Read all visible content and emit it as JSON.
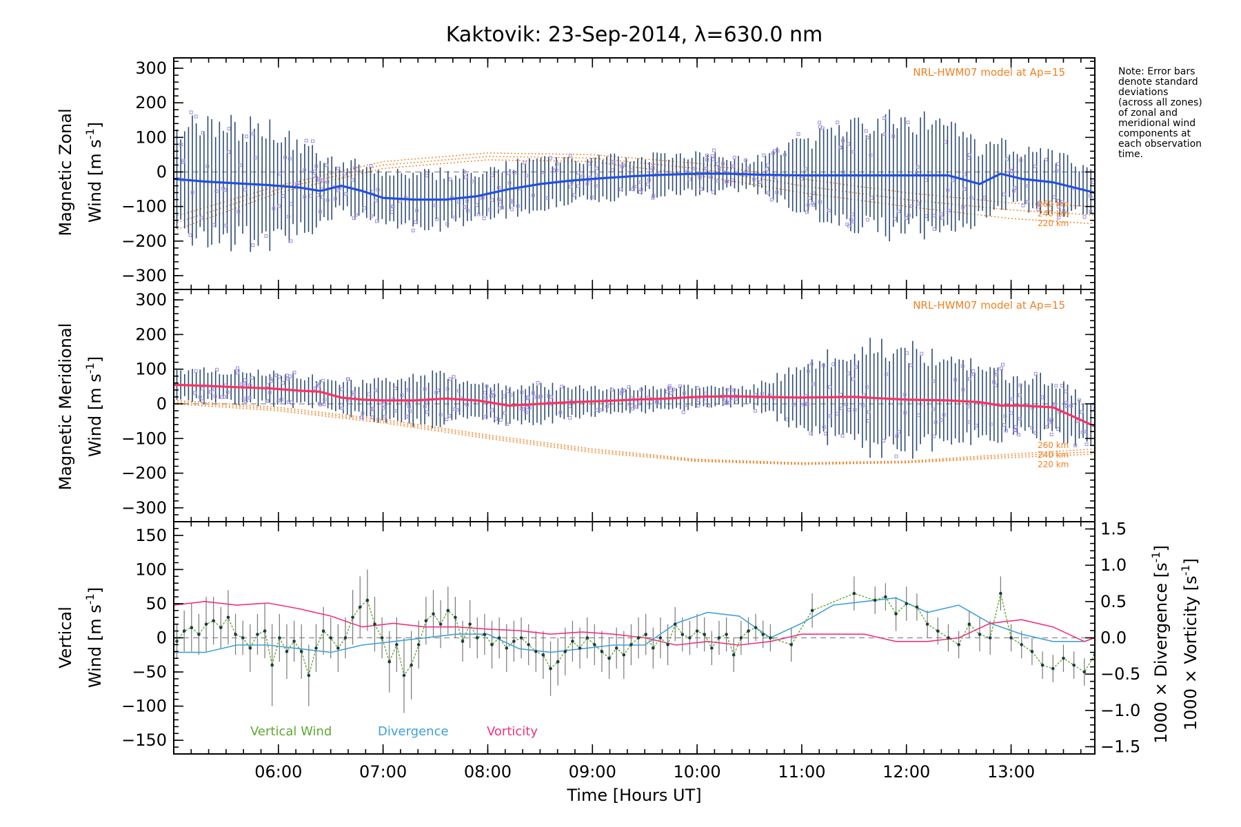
{
  "title": "Kaktovik: 23-Sep-2014, λ=630.0 nm",
  "xlabel": "Time [Hours UT]",
  "note": [
    "Note: Error bars",
    "denote standard",
    "deviations",
    "(across all zones)",
    "of zonal and",
    "meridional wind",
    "components at",
    "each observation",
    "time."
  ],
  "colors": {
    "zonal_mean": "#2050e0",
    "meridional_mean": "#ff3060",
    "vertical": "#60a830",
    "divergence": "#40a0d8",
    "vorticity": "#f03080",
    "model": "#f08020",
    "scatter": "#9c8ce0",
    "errorbar": "#2c4a70",
    "vertical_point": "#1a3a40"
  },
  "chart_data": [
    {
      "type": "scatter",
      "panel": "zonal",
      "ylabel_1": "Magnetic Zonal",
      "ylabel_2a": "Wind [m s",
      "ylabel_2b": "-1",
      "ylabel_2c": "]",
      "model_label": "NRL-HWM07 model at Ap=15",
      "model_altitudes": [
        "260 km",
        "240 km",
        "220 km"
      ],
      "xlim": [
        5.0,
        13.8
      ],
      "ylim": [
        -340,
        330
      ],
      "x_ticks": [
        6,
        7,
        8,
        9,
        10,
        11,
        12,
        13
      ],
      "x_tick_labels": [
        "06:00",
        "07:00",
        "08:00",
        "09:00",
        "10:00",
        "11:00",
        "12:00",
        "13:00"
      ],
      "y_ticks": [
        -300,
        -200,
        -100,
        0,
        100,
        200,
        300
      ],
      "y_tick_labels": [
        "−300",
        "−200",
        "−100",
        "0",
        "100",
        "200",
        "300"
      ],
      "grid": false,
      "mean_wind": {
        "x": [
          5.0,
          5.3,
          5.6,
          5.9,
          6.2,
          6.4,
          6.6,
          6.8,
          7.0,
          7.3,
          7.6,
          7.9,
          8.2,
          8.5,
          8.8,
          9.1,
          9.4,
          9.7,
          10.0,
          10.3,
          10.6,
          11.0,
          11.5,
          12.0,
          12.4,
          12.7,
          12.9,
          13.1,
          13.4,
          13.8
        ],
        "y": [
          -20,
          -28,
          -33,
          -38,
          -45,
          -55,
          -40,
          -55,
          -75,
          -80,
          -80,
          -70,
          -50,
          -35,
          -25,
          -18,
          -12,
          -8,
          -5,
          -5,
          -8,
          -10,
          -10,
          -10,
          -10,
          -35,
          -5,
          -20,
          -30,
          -60
        ]
      },
      "spread": {
        "x": [
          5.0,
          5.5,
          6.0,
          6.5,
          7.0,
          7.5,
          8.0,
          8.5,
          9.0,
          9.5,
          10.0,
          10.5,
          11.0,
          11.5,
          12.0,
          12.5,
          13.0,
          13.5,
          13.8
        ],
        "sd": [
          150,
          175,
          170,
          80,
          70,
          80,
          70,
          70,
          60,
          55,
          60,
          40,
          100,
          150,
          170,
          130,
          80,
          80,
          60
        ]
      },
      "model_curves": [
        {
          "name": "260 km",
          "x": [
            5.0,
            6.0,
            7.0,
            8.0,
            9.0,
            10.0,
            11.0,
            12.0,
            13.0,
            13.8
          ],
          "y": [
            -130,
            -40,
            30,
            55,
            50,
            25,
            -20,
            -60,
            -90,
            -100
          ]
        },
        {
          "name": "240 km",
          "x": [
            5.0,
            6.0,
            7.0,
            8.0,
            9.0,
            10.0,
            11.0,
            12.0,
            13.0,
            13.8
          ],
          "y": [
            -150,
            -50,
            20,
            45,
            40,
            10,
            -40,
            -80,
            -110,
            -125
          ]
        },
        {
          "name": "220 km",
          "x": [
            5.0,
            6.0,
            7.0,
            8.0,
            9.0,
            10.0,
            11.0,
            12.0,
            13.0,
            13.8
          ],
          "y": [
            -170,
            -60,
            10,
            35,
            30,
            -10,
            -60,
            -100,
            -135,
            -150
          ]
        }
      ]
    },
    {
      "type": "scatter",
      "panel": "meridional",
      "ylabel_1": "Magnetic Meridional",
      "ylabel_2a": "Wind [m s",
      "ylabel_2b": "-1",
      "ylabel_2c": "]",
      "model_label": "NRL-HWM07 model at Ap=15",
      "model_altitudes": [
        "260 km",
        "240 km",
        "220 km"
      ],
      "xlim": [
        5.0,
        13.8
      ],
      "ylim": [
        -340,
        330
      ],
      "y_ticks": [
        -300,
        -200,
        -100,
        0,
        100,
        200,
        300
      ],
      "y_tick_labels": [
        "−300",
        "−200",
        "−100",
        "0",
        "100",
        "200",
        "300"
      ],
      "grid": false,
      "mean_wind": {
        "x": [
          5.0,
          5.3,
          5.6,
          5.9,
          6.2,
          6.4,
          6.6,
          6.8,
          7.0,
          7.3,
          7.6,
          7.9,
          8.2,
          8.5,
          8.8,
          9.1,
          9.4,
          9.7,
          10.0,
          10.3,
          10.6,
          11.0,
          11.5,
          12.0,
          12.4,
          12.7,
          12.9,
          13.1,
          13.4,
          13.8
        ],
        "y": [
          55,
          52,
          48,
          45,
          38,
          35,
          18,
          12,
          10,
          10,
          15,
          10,
          -5,
          0,
          5,
          8,
          12,
          15,
          20,
          22,
          20,
          18,
          20,
          12,
          10,
          5,
          -5,
          -5,
          -10,
          -65
        ]
      },
      "spread": {
        "x": [
          5.0,
          5.5,
          6.0,
          6.5,
          7.0,
          7.5,
          8.0,
          8.5,
          9.0,
          9.5,
          10.0,
          10.5,
          11.0,
          11.5,
          12.0,
          12.5,
          13.0,
          13.5,
          13.8
        ],
        "sd": [
          45,
          45,
          45,
          40,
          60,
          70,
          50,
          55,
          40,
          35,
          30,
          25,
          90,
          150,
          150,
          110,
          90,
          80,
          60
        ]
      },
      "model_curves": [
        {
          "name": "260 km",
          "x": [
            5.0,
            6.0,
            7.0,
            8.0,
            9.0,
            10.0,
            11.0,
            12.0,
            13.0,
            13.8
          ],
          "y": [
            10,
            -10,
            -45,
            -90,
            -130,
            -160,
            -170,
            -165,
            -145,
            -130
          ]
        },
        {
          "name": "240 km",
          "x": [
            5.0,
            6.0,
            7.0,
            8.0,
            9.0,
            10.0,
            11.0,
            12.0,
            13.0,
            13.8
          ],
          "y": [
            5,
            -15,
            -50,
            -95,
            -135,
            -163,
            -172,
            -168,
            -150,
            -138
          ]
        },
        {
          "name": "220 km",
          "x": [
            5.0,
            6.0,
            7.0,
            8.0,
            9.0,
            10.0,
            11.0,
            12.0,
            13.0,
            13.8
          ],
          "y": [
            0,
            -20,
            -55,
            -100,
            -140,
            -166,
            -175,
            -170,
            -155,
            -145
          ]
        }
      ]
    },
    {
      "type": "line",
      "panel": "vertical",
      "ylabel_v1": "Vertical",
      "ylabel_v2a": "Wind [m s",
      "ylabel_v2b": "-1",
      "ylabel_v2c": "]",
      "ylabel_div_a": "1000 × Divergence [s",
      "ylabel_div_b": "-1",
      "ylabel_div_c": "]",
      "ylabel_vor_a": "1000 × Vorticity [s",
      "ylabel_vor_b": "-1",
      "ylabel_vor_c": "]",
      "xlim": [
        5.0,
        13.8
      ],
      "ylim": [
        -170,
        170
      ],
      "y2lim": [
        -1.6,
        1.6
      ],
      "x_ticks": [
        6,
        7,
        8,
        9,
        10,
        11,
        12,
        13
      ],
      "x_tick_labels": [
        "06:00",
        "07:00",
        "08:00",
        "09:00",
        "10:00",
        "11:00",
        "12:00",
        "13:00"
      ],
      "y_ticks": [
        -150,
        -100,
        -50,
        0,
        50,
        100,
        150
      ],
      "y_tick_labels": [
        "−150",
        "−100",
        "−50",
        "0",
        "50",
        "100",
        "150"
      ],
      "y2_ticks": [
        -1.5,
        -1.0,
        -0.5,
        0.0,
        0.5,
        1.0,
        1.5
      ],
      "y2_tick_labels": [
        "−1.5",
        "−1.0",
        "−0.5",
        "0.0",
        "0.5",
        "1.0",
        "1.5"
      ],
      "legend": [
        "Vertical Wind",
        "Divergence",
        "Vorticity"
      ],
      "grid": false,
      "series": [
        {
          "name": "Vertical Wind",
          "x": [
            5.03,
            5.1,
            5.17,
            5.24,
            5.31,
            5.38,
            5.45,
            5.52,
            5.59,
            5.66,
            5.73,
            5.8,
            5.87,
            5.94,
            6.01,
            6.08,
            6.15,
            6.22,
            6.29,
            6.36,
            6.43,
            6.5,
            6.57,
            6.64,
            6.71,
            6.78,
            6.85,
            6.92,
            6.99,
            7.06,
            7.13,
            7.2,
            7.27,
            7.34,
            7.41,
            7.48,
            7.55,
            7.62,
            7.69,
            7.76,
            7.83,
            7.9,
            7.97,
            8.04,
            8.11,
            8.18,
            8.25,
            8.32,
            8.39,
            8.46,
            8.53,
            8.6,
            8.67,
            8.74,
            8.81,
            8.88,
            8.95,
            9.02,
            9.09,
            9.16,
            9.23,
            9.3,
            9.37,
            9.44,
            9.51,
            9.58,
            9.65,
            9.72,
            9.79,
            9.86,
            9.93,
            10.0,
            10.07,
            10.14,
            10.21,
            10.28,
            10.35,
            10.42,
            10.49,
            10.56,
            10.63,
            10.7,
            10.9,
            11.1,
            11.5,
            11.7,
            11.8,
            11.9,
            12.0,
            12.1,
            12.2,
            12.3,
            12.4,
            12.5,
            12.6,
            12.7,
            12.8,
            12.9,
            13.0,
            13.1,
            13.2,
            13.3,
            13.4,
            13.5,
            13.6,
            13.7,
            13.8
          ],
          "y": [
            -5,
            10,
            15,
            5,
            20,
            25,
            15,
            30,
            5,
            0,
            -15,
            5,
            10,
            -40,
            0,
            -20,
            -5,
            -20,
            -55,
            -15,
            10,
            0,
            -15,
            0,
            30,
            45,
            55,
            20,
            0,
            -35,
            -10,
            -55,
            -40,
            -10,
            25,
            35,
            20,
            40,
            30,
            -5,
            20,
            0,
            5,
            -10,
            0,
            -15,
            -5,
            0,
            -10,
            -20,
            -25,
            -45,
            -35,
            -20,
            -5,
            -15,
            0,
            -10,
            -20,
            -30,
            -15,
            -25,
            -10,
            0,
            5,
            -15,
            0,
            -10,
            20,
            5,
            0,
            10,
            5,
            -15,
            0,
            5,
            -25,
            0,
            10,
            15,
            5,
            0,
            -10,
            40,
            65,
            55,
            60,
            35,
            50,
            45,
            20,
            10,
            0,
            -10,
            20,
            5,
            0,
            65,
            0,
            -10,
            -20,
            -40,
            -45,
            -30,
            -40,
            -50,
            -25
          ],
          "err": [
            25,
            30,
            35,
            30,
            40,
            35,
            30,
            40,
            30,
            25,
            35,
            30,
            40,
            60,
            35,
            40,
            30,
            40,
            45,
            35,
            35,
            30,
            35,
            30,
            40,
            45,
            45,
            40,
            30,
            45,
            40,
            55,
            50,
            35,
            35,
            35,
            35,
            35,
            30,
            30,
            35,
            30,
            30,
            35,
            30,
            35,
            30,
            30,
            30,
            30,
            35,
            40,
            35,
            35,
            30,
            30,
            30,
            30,
            30,
            30,
            30,
            35,
            30,
            30,
            30,
            30,
            30,
            30,
            25,
            25,
            25,
            25,
            25,
            25,
            25,
            25,
            25,
            25,
            20,
            20,
            20,
            20,
            25,
            25,
            25,
            20,
            20,
            25,
            25,
            20,
            20,
            20,
            20,
            20,
            20,
            25,
            25,
            25,
            20,
            20,
            20,
            20,
            20,
            20,
            20,
            20,
            20
          ]
        },
        {
          "name": "Divergence",
          "x": [
            5.0,
            5.3,
            5.6,
            5.9,
            6.2,
            6.5,
            6.8,
            7.1,
            7.4,
            7.7,
            8.0,
            8.3,
            8.6,
            8.9,
            9.2,
            9.5,
            9.8,
            10.1,
            10.4,
            10.7,
            11.0,
            11.3,
            11.6,
            11.9,
            12.2,
            12.5,
            12.8,
            13.1,
            13.4,
            13.7,
            13.8
          ],
          "y": [
            -0.2,
            -0.2,
            -0.1,
            -0.1,
            -0.15,
            -0.2,
            -0.1,
            -0.05,
            0.0,
            0.05,
            0.05,
            -0.15,
            -0.2,
            -0.15,
            -0.1,
            -0.1,
            0.2,
            0.35,
            0.3,
            0.0,
            0.2,
            0.45,
            0.5,
            0.55,
            0.35,
            0.45,
            0.2,
            0.05,
            -0.05,
            -0.05,
            0.0
          ]
        },
        {
          "name": "Vorticity",
          "x": [
            5.0,
            5.3,
            5.6,
            5.9,
            6.2,
            6.5,
            6.8,
            7.1,
            7.4,
            7.7,
            8.0,
            8.3,
            8.6,
            8.9,
            9.2,
            9.5,
            9.8,
            10.1,
            10.4,
            10.7,
            11.0,
            11.3,
            11.6,
            11.9,
            12.2,
            12.5,
            12.8,
            13.1,
            13.4,
            13.7,
            13.8
          ],
          "y": [
            0.45,
            0.5,
            0.45,
            0.48,
            0.4,
            0.3,
            0.15,
            0.2,
            0.15,
            0.15,
            0.12,
            0.1,
            0.05,
            0.08,
            0.05,
            0.0,
            -0.1,
            -0.05,
            -0.1,
            -0.05,
            0.05,
            0.05,
            0.05,
            -0.05,
            -0.05,
            0.0,
            0.2,
            0.25,
            0.15,
            -0.05,
            0.0
          ]
        }
      ]
    }
  ]
}
